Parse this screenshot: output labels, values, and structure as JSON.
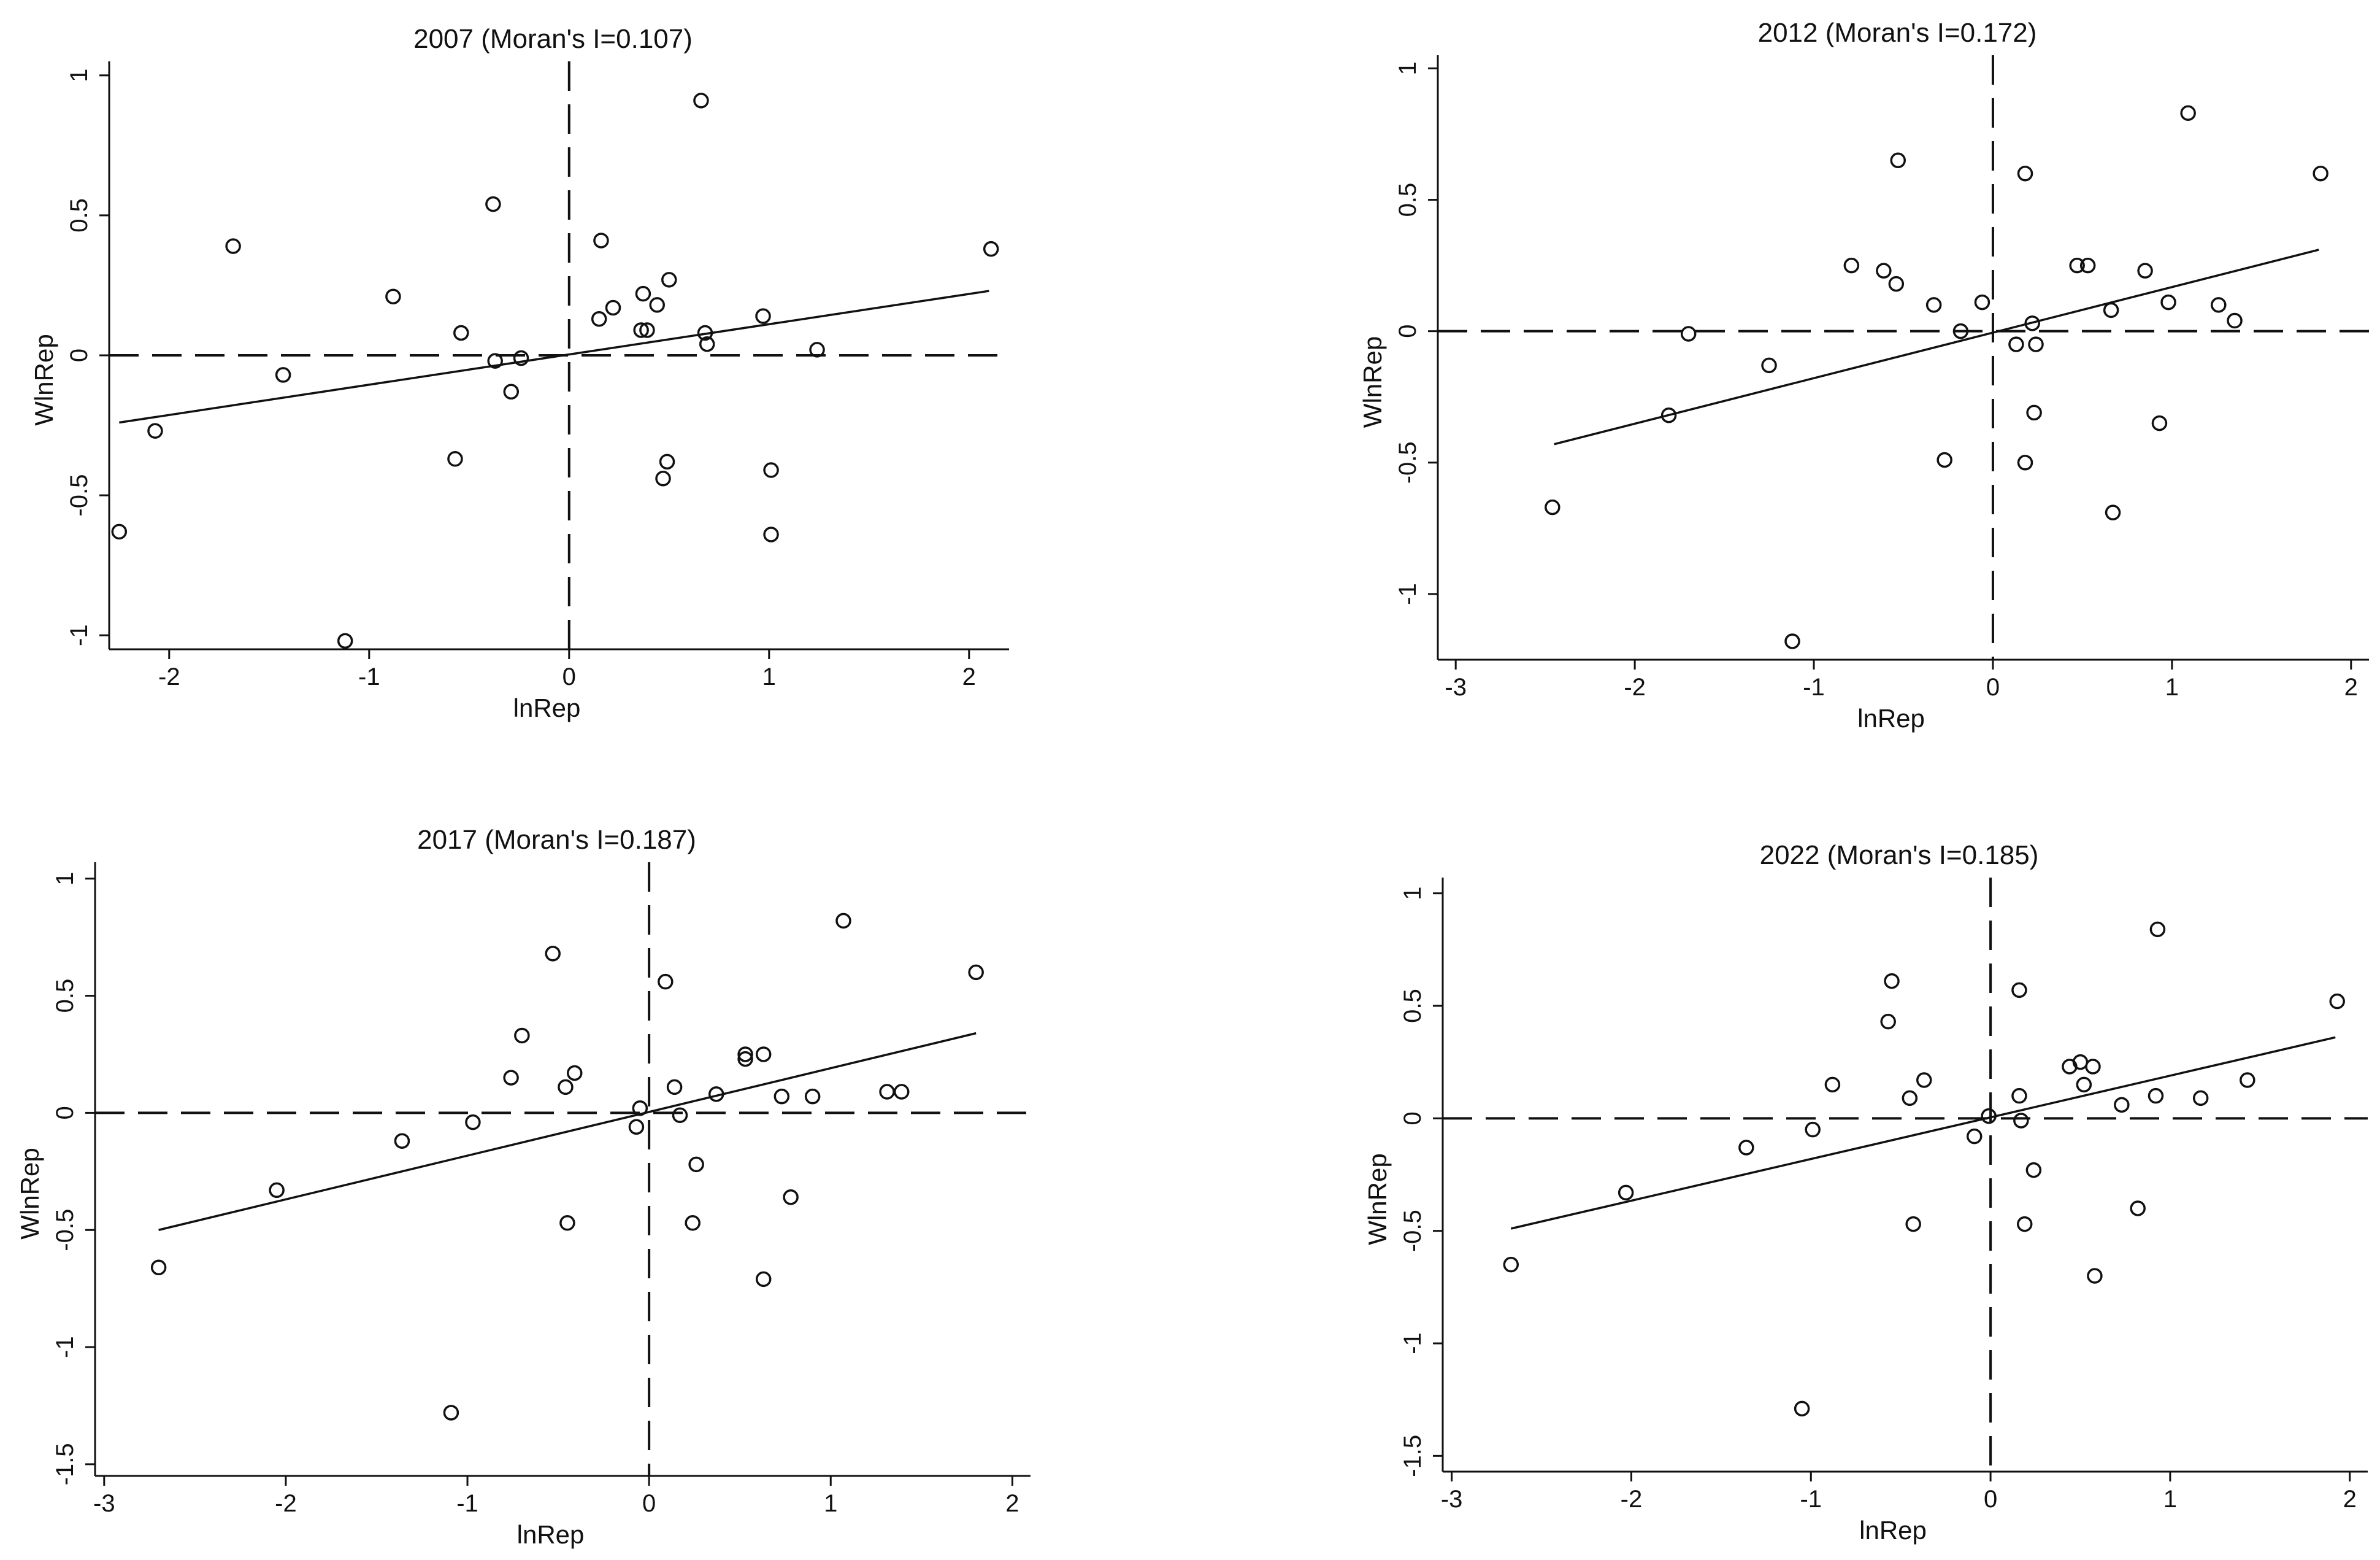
{
  "chart_data": [
    {
      "type": "scatter",
      "title": "2007 (Moran's I=0.107)",
      "xlabel": "lnRep",
      "ylabel": "WlnRep",
      "xlim": [
        -2.3,
        2.2
      ],
      "ylim": [
        -1.05,
        1.05
      ],
      "xticks": [
        -2,
        -1,
        0,
        1,
        2
      ],
      "xtick_labels": [
        "-2",
        "-1",
        "0",
        "1",
        "2"
      ],
      "yticks": [
        -1,
        -0.5,
        0,
        0.5,
        1
      ],
      "ytick_labels": [
        "-1",
        "-0.5",
        "0",
        "0.5",
        "1"
      ],
      "fit_line": {
        "x": [
          -2.25,
          2.1
        ],
        "y": [
          -0.24,
          0.23
        ]
      },
      "points": [
        {
          "x": -2.25,
          "y": -0.63
        },
        {
          "x": -2.07,
          "y": -0.27
        },
        {
          "x": -1.68,
          "y": 0.39
        },
        {
          "x": -1.43,
          "y": -0.07
        },
        {
          "x": -1.12,
          "y": -1.02
        },
        {
          "x": -0.88,
          "y": 0.21
        },
        {
          "x": -0.57,
          "y": -0.37
        },
        {
          "x": -0.54,
          "y": 0.08
        },
        {
          "x": -0.38,
          "y": 0.54
        },
        {
          "x": -0.37,
          "y": -0.02
        },
        {
          "x": -0.29,
          "y": -0.13
        },
        {
          "x": -0.24,
          "y": -0.01
        },
        {
          "x": 0.15,
          "y": 0.13
        },
        {
          "x": 0.16,
          "y": 0.41
        },
        {
          "x": 0.22,
          "y": 0.17
        },
        {
          "x": 0.36,
          "y": 0.09
        },
        {
          "x": 0.37,
          "y": 0.22
        },
        {
          "x": 0.39,
          "y": 0.09
        },
        {
          "x": 0.44,
          "y": 0.18
        },
        {
          "x": 0.47,
          "y": -0.44
        },
        {
          "x": 0.49,
          "y": -0.38
        },
        {
          "x": 0.5,
          "y": 0.27
        },
        {
          "x": 0.66,
          "y": 0.91
        },
        {
          "x": 0.68,
          "y": 0.08
        },
        {
          "x": 0.69,
          "y": 0.04
        },
        {
          "x": 0.97,
          "y": 0.14
        },
        {
          "x": 1.01,
          "y": -0.41
        },
        {
          "x": 1.01,
          "y": -0.64
        },
        {
          "x": 1.24,
          "y": 0.02
        },
        {
          "x": 2.11,
          "y": 0.38
        }
      ]
    },
    {
      "type": "scatter",
      "title": "2012 (Moran's I=0.172)",
      "xlabel": "lnRep",
      "ylabel": "WlnRep",
      "xlim": [
        -3.1,
        2.1
      ],
      "ylim": [
        -1.25,
        1.05
      ],
      "xticks": [
        -3,
        -2,
        -1,
        0,
        1,
        2
      ],
      "xtick_labels": [
        "-3",
        "-2",
        "-1",
        "0",
        "1",
        "2"
      ],
      "yticks": [
        -1,
        -0.5,
        0,
        0.5,
        1
      ],
      "ytick_labels": [
        "-1",
        "-0.5",
        "0",
        "0.5",
        "1"
      ],
      "fit_line": {
        "x": [
          -2.45,
          1.82
        ],
        "y": [
          -0.43,
          0.31
        ]
      },
      "points": [
        {
          "x": -2.46,
          "y": -0.67
        },
        {
          "x": -1.81,
          "y": -0.32
        },
        {
          "x": -1.7,
          "y": -0.01
        },
        {
          "x": -1.12,
          "y": -1.18
        },
        {
          "x": -1.25,
          "y": -0.13
        },
        {
          "x": -0.79,
          "y": 0.25
        },
        {
          "x": -0.61,
          "y": 0.23
        },
        {
          "x": -0.54,
          "y": 0.18
        },
        {
          "x": -0.53,
          "y": 0.65
        },
        {
          "x": -0.33,
          "y": 0.1
        },
        {
          "x": -0.27,
          "y": -0.49
        },
        {
          "x": -0.18,
          "y": 0.0
        },
        {
          "x": -0.06,
          "y": 0.11
        },
        {
          "x": 0.13,
          "y": -0.05
        },
        {
          "x": 0.18,
          "y": 0.6
        },
        {
          "x": 0.18,
          "y": -0.5
        },
        {
          "x": 0.22,
          "y": 0.03
        },
        {
          "x": 0.23,
          "y": -0.31
        },
        {
          "x": 0.24,
          "y": -0.05
        },
        {
          "x": 0.47,
          "y": 0.25
        },
        {
          "x": 0.53,
          "y": 0.25
        },
        {
          "x": 0.66,
          "y": 0.08
        },
        {
          "x": 0.67,
          "y": -0.69
        },
        {
          "x": 0.85,
          "y": 0.23
        },
        {
          "x": 0.93,
          "y": -0.35
        },
        {
          "x": 0.98,
          "y": 0.11
        },
        {
          "x": 1.09,
          "y": 0.83
        },
        {
          "x": 1.26,
          "y": 0.1
        },
        {
          "x": 1.35,
          "y": 0.04
        },
        {
          "x": 1.83,
          "y": 0.6
        }
      ]
    },
    {
      "type": "scatter",
      "title": "2017 (Moran's I=0.187)",
      "xlabel": "lnRep",
      "ylabel": "WlnRep",
      "xlim": [
        -3.05,
        2.1
      ],
      "ylim": [
        -1.55,
        1.07
      ],
      "xticks": [
        -3,
        -2,
        -1,
        0,
        1,
        2
      ],
      "xtick_labels": [
        "-3",
        "-2",
        "-1",
        "0",
        "1",
        "2"
      ],
      "yticks": [
        -1.5,
        -1,
        -0.5,
        0,
        0.5,
        1
      ],
      "ytick_labels": [
        "-1.5",
        "-1",
        "-0.5",
        "0",
        "0.5",
        "1"
      ],
      "fit_line": {
        "x": [
          -2.7,
          1.8
        ],
        "y": [
          -0.5,
          0.34
        ]
      },
      "points": [
        {
          "x": -2.7,
          "y": -0.66
        },
        {
          "x": -2.05,
          "y": -0.33
        },
        {
          "x": -1.36,
          "y": -0.12
        },
        {
          "x": -1.09,
          "y": -1.28
        },
        {
          "x": -0.97,
          "y": -0.04
        },
        {
          "x": -0.76,
          "y": 0.15
        },
        {
          "x": -0.7,
          "y": 0.33
        },
        {
          "x": -0.53,
          "y": 0.68
        },
        {
          "x": -0.46,
          "y": 0.11
        },
        {
          "x": -0.45,
          "y": -0.47
        },
        {
          "x": -0.41,
          "y": 0.17
        },
        {
          "x": -0.07,
          "y": -0.06
        },
        {
          "x": -0.05,
          "y": 0.02
        },
        {
          "x": 0.09,
          "y": 0.56
        },
        {
          "x": 0.14,
          "y": 0.11
        },
        {
          "x": 0.17,
          "y": -0.01
        },
        {
          "x": 0.24,
          "y": -0.47
        },
        {
          "x": 0.26,
          "y": -0.22
        },
        {
          "x": 0.37,
          "y": 0.08
        },
        {
          "x": 0.53,
          "y": 0.23
        },
        {
          "x": 0.53,
          "y": 0.25
        },
        {
          "x": 0.63,
          "y": -0.71
        },
        {
          "x": 0.63,
          "y": 0.25
        },
        {
          "x": 0.73,
          "y": 0.07
        },
        {
          "x": 0.78,
          "y": -0.36
        },
        {
          "x": 0.9,
          "y": 0.07
        },
        {
          "x": 1.07,
          "y": 0.82
        },
        {
          "x": 1.31,
          "y": 0.09
        },
        {
          "x": 1.39,
          "y": 0.09
        },
        {
          "x": 1.8,
          "y": 0.6
        }
      ]
    },
    {
      "type": "scatter",
      "title": "2022 (Moran's I=0.185)",
      "xlabel": "lnRep",
      "ylabel": "WlnRep",
      "xlim": [
        -3.05,
        2.1
      ],
      "ylim": [
        -1.57,
        1.07
      ],
      "xticks": [
        -3,
        -2,
        -1,
        0,
        1,
        2
      ],
      "xtick_labels": [
        "-3",
        "-2",
        "-1",
        "0",
        "1",
        "2"
      ],
      "yticks": [
        -1.5,
        -1,
        -0.5,
        0,
        0.5,
        1
      ],
      "ytick_labels": [
        "-1.5",
        "-1",
        "-0.5",
        "0",
        "0.5",
        "1"
      ],
      "fit_line": {
        "x": [
          -2.67,
          1.92
        ],
        "y": [
          -0.49,
          0.36
        ]
      },
      "points": [
        {
          "x": -2.67,
          "y": -0.65
        },
        {
          "x": -2.03,
          "y": -0.33
        },
        {
          "x": -1.36,
          "y": -0.13
        },
        {
          "x": -1.05,
          "y": -1.29
        },
        {
          "x": -0.99,
          "y": -0.05
        },
        {
          "x": -0.88,
          "y": 0.15
        },
        {
          "x": -0.57,
          "y": 0.43
        },
        {
          "x": -0.55,
          "y": 0.61
        },
        {
          "x": -0.45,
          "y": 0.09
        },
        {
          "x": -0.43,
          "y": -0.47
        },
        {
          "x": -0.37,
          "y": 0.17
        },
        {
          "x": -0.09,
          "y": -0.08
        },
        {
          "x": -0.01,
          "y": 0.01
        },
        {
          "x": 0.16,
          "y": 0.57
        },
        {
          "x": 0.16,
          "y": 0.1
        },
        {
          "x": 0.17,
          "y": -0.01
        },
        {
          "x": 0.19,
          "y": -0.47
        },
        {
          "x": 0.24,
          "y": -0.23
        },
        {
          "x": 0.44,
          "y": 0.23
        },
        {
          "x": 0.5,
          "y": 0.25
        },
        {
          "x": 0.52,
          "y": 0.15
        },
        {
          "x": 0.57,
          "y": 0.23
        },
        {
          "x": 0.58,
          "y": -0.7
        },
        {
          "x": 0.73,
          "y": 0.06
        },
        {
          "x": 0.82,
          "y": -0.4
        },
        {
          "x": 0.92,
          "y": 0.1
        },
        {
          "x": 0.93,
          "y": 0.84
        },
        {
          "x": 1.17,
          "y": 0.09
        },
        {
          "x": 1.43,
          "y": 0.17
        },
        {
          "x": 1.93,
          "y": 0.52
        }
      ]
    }
  ]
}
